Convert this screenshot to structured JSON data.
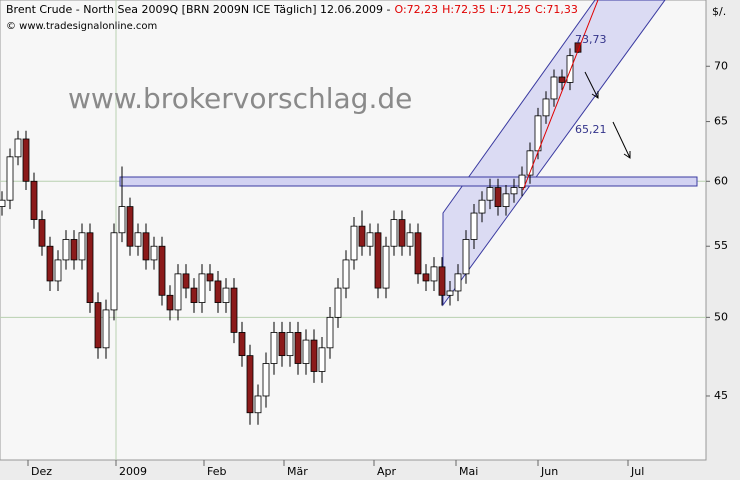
{
  "header": {
    "instrument": "Brent Crude - North Sea 2009Q [BRN 2009N ICE  Täglich] 12.06.2009 -",
    "quotes": [
      "O:72,23",
      "H:72,35",
      "L:71,25",
      "C:71,33"
    ],
    "copyright": "© www.tradesignalonline.com",
    "watermark": "www.brokervorschlag.de"
  },
  "chart_data": {
    "type": "candlestick",
    "y_unit_label": "$/.",
    "log_scale": true,
    "ylim": [
      41.3,
      76.5
    ],
    "yticks": [
      45,
      50,
      55,
      60,
      65,
      70
    ],
    "xlim": [
      -0.5,
      176
    ],
    "xticks": [
      {
        "value": 6.5,
        "label": "Dez"
      },
      {
        "value": 28.5,
        "label": "2009"
      },
      {
        "value": 50.5,
        "label": "Feb"
      },
      {
        "value": 70.5,
        "label": "Mär"
      },
      {
        "value": 93,
        "label": "Apr"
      },
      {
        "value": 113.5,
        "label": "Mai"
      },
      {
        "value": 134,
        "label": "Jun"
      },
      {
        "value": 156.5,
        "label": "Jul"
      }
    ],
    "ygrid": [
      50,
      60
    ],
    "xgrid": [
      28.5
    ],
    "up_color": "#ffffff",
    "down_color": "#8b1a1a",
    "wick_color": "#000000",
    "annotations": [
      "73,73",
      "65,21"
    ],
    "x": [
      0,
      2,
      4,
      6,
      8,
      10,
      12,
      14,
      16,
      18,
      20,
      22,
      24,
      26,
      28,
      30,
      32,
      34,
      36,
      38,
      40,
      42,
      44,
      46,
      48,
      50,
      52,
      54,
      56,
      58,
      60,
      62,
      64,
      66,
      68,
      70,
      72,
      74,
      76,
      78,
      80,
      82,
      84,
      86,
      88,
      90,
      92,
      94,
      96,
      98,
      100,
      102,
      104,
      106,
      108,
      110,
      112,
      114,
      116,
      118,
      120,
      122,
      124,
      126,
      128,
      130,
      132,
      134,
      136,
      138,
      140,
      142,
      144
    ],
    "open": [
      58,
      58.5,
      62,
      63.5,
      60,
      57,
      55,
      52.5,
      54,
      55.5,
      54,
      56,
      51,
      48,
      50.5,
      56,
      58,
      55,
      56,
      54,
      55,
      51.5,
      50.5,
      53,
      52,
      51,
      53,
      52.5,
      51,
      52,
      49,
      47.5,
      44,
      45,
      47,
      49,
      47.5,
      49,
      47,
      48.5,
      46.5,
      48,
      50,
      52,
      54,
      56.5,
      55,
      56,
      52,
      55,
      57,
      55,
      56,
      53,
      52.5,
      53.5,
      51.5,
      51.8,
      53,
      55.5,
      57.5,
      58.5,
      59.5,
      58,
      59,
      59.5,
      60.5,
      62.5,
      65.5,
      67,
      69,
      68.5,
      72.23
    ],
    "high": [
      59.2,
      62.7,
      64.2,
      64.2,
      60.7,
      57.7,
      55.7,
      54.7,
      56.2,
      56.2,
      56.7,
      56.7,
      51.7,
      51.2,
      56.7,
      61.2,
      58.7,
      56.7,
      56.7,
      55.7,
      55.7,
      52.2,
      53.7,
      53.7,
      52.7,
      53.7,
      53.7,
      53.2,
      52.7,
      52.7,
      49.7,
      48.2,
      45.7,
      47.7,
      49.7,
      49.7,
      49.7,
      49.7,
      49.2,
      49.2,
      48.7,
      50.7,
      52.7,
      54.7,
      57.2,
      57.7,
      56.7,
      56.7,
      55.7,
      57.7,
      57.7,
      56.7,
      56.7,
      53.7,
      54.2,
      54.2,
      52.5,
      53.7,
      56.2,
      58.2,
      59.2,
      60.2,
      60.2,
      59.7,
      60.2,
      61.2,
      63.2,
      66.2,
      67.7,
      69.7,
      69.7,
      71.7,
      72.35
    ],
    "low": [
      57.3,
      57.8,
      61.3,
      59.3,
      56.3,
      54.3,
      51.8,
      51.8,
      53.3,
      53.3,
      53.3,
      50.3,
      47.3,
      47.3,
      49.8,
      55.3,
      54.3,
      54.3,
      53.3,
      53.3,
      50.8,
      49.8,
      49.8,
      51.3,
      50.3,
      50.3,
      51.8,
      50.3,
      50.3,
      48.3,
      46.8,
      43.3,
      43.3,
      44.3,
      46.3,
      46.8,
      46.8,
      46.3,
      46.3,
      45.8,
      45.8,
      47.3,
      49.3,
      51.3,
      53.3,
      54.3,
      54.3,
      51.3,
      51.3,
      54.3,
      54.3,
      54.3,
      52.3,
      51.8,
      51.8,
      50.8,
      50.8,
      51.1,
      52.3,
      54.8,
      56.8,
      57.8,
      57.3,
      57.3,
      58.3,
      58.8,
      59.8,
      61.8,
      64.8,
      66.3,
      67.8,
      67.8,
      71.25
    ],
    "close": [
      58.5,
      62,
      63.5,
      60,
      57,
      55,
      52.5,
      54,
      55.5,
      54,
      56,
      51,
      48,
      50.5,
      56,
      58,
      55,
      56,
      54,
      55,
      51.5,
      50.5,
      53,
      52,
      51,
      53,
      52.5,
      51,
      52,
      49,
      47.5,
      44,
      45,
      47,
      49,
      47.5,
      49,
      47,
      48.5,
      46.5,
      48,
      50,
      52,
      54,
      56.5,
      55,
      56,
      52,
      55,
      57,
      55,
      56,
      53,
      52.5,
      53.5,
      51.5,
      51.8,
      53,
      55.5,
      57.5,
      58.5,
      59.5,
      58,
      59,
      59.5,
      60.5,
      62.5,
      65.5,
      67,
      69,
      68.5,
      71,
      71.33
    ]
  }
}
